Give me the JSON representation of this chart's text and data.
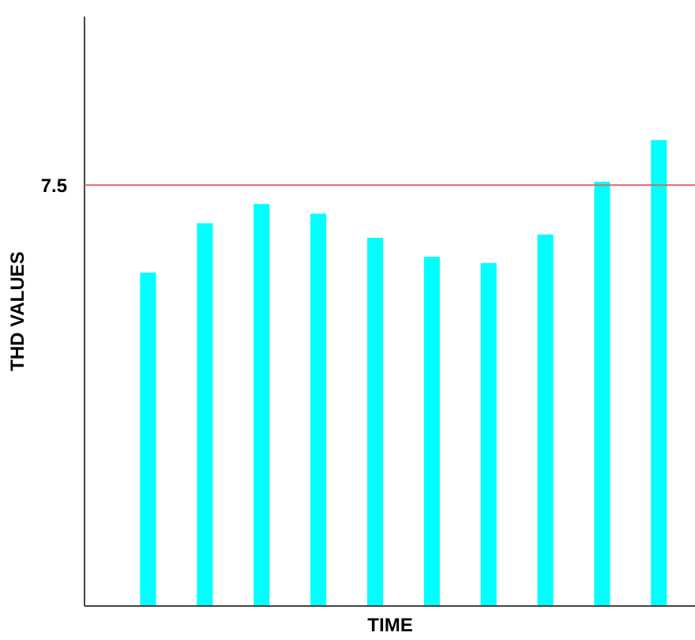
{
  "chart_data": {
    "type": "bar",
    "xlabel": "TIME",
    "ylabel": "THD VALUES",
    "categories": [
      null,
      null,
      null,
      null,
      null,
      null,
      null,
      null,
      null,
      null
    ],
    "values": [
      5.94,
      6.82,
      7.16,
      6.99,
      6.56,
      6.22,
      6.11,
      6.62,
      7.56,
      8.3
    ],
    "color": "#00ffff",
    "ylim": [
      0,
      10.5
    ],
    "yticks": [
      7.5
    ],
    "ref_lines": [
      {
        "axis": "y",
        "value": 7.5,
        "color": "#e06666"
      }
    ],
    "grid": false
  }
}
